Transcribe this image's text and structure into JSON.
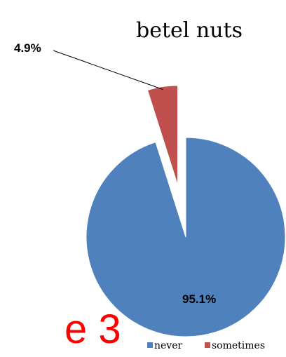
{
  "chart_data": {
    "type": "pie",
    "title": "betel nuts",
    "categories": [
      "never",
      "sometimes"
    ],
    "values": [
      95.1,
      4.9
    ],
    "data_labels": [
      "95.1%",
      "4.9%"
    ],
    "colors": [
      "#4f81bd",
      "#c0504d"
    ],
    "exploded_slice": "sometimes",
    "legend_position": "bottom-right"
  },
  "overlay": {
    "text": "e 3",
    "color": "#ff0000"
  }
}
